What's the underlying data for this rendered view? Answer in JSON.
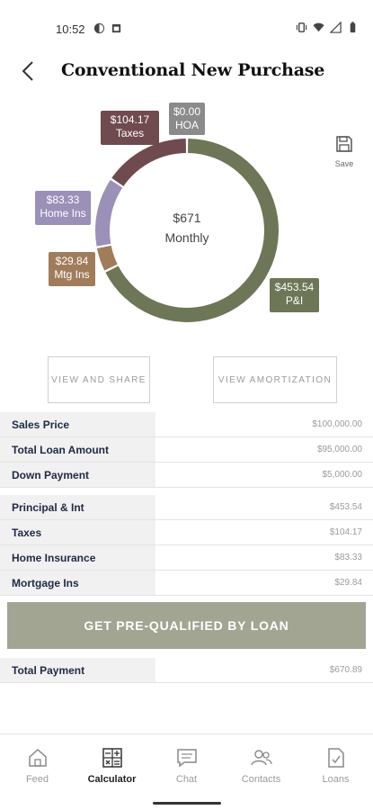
{
  "status_bar": {
    "time": "10:52"
  },
  "header": {
    "title": "Conventional New Purchase"
  },
  "chart_data": {
    "type": "pie",
    "center_amount": "$671",
    "center_label": "Monthly",
    "series": [
      {
        "name": "P&I",
        "value": 453.54,
        "label": "$453.54",
        "color": "#6d7656"
      },
      {
        "name": "Mtg Ins",
        "value": 29.84,
        "label": "$29.84",
        "color": "#a17c5b"
      },
      {
        "name": "Home Ins",
        "value": 83.33,
        "label": "$83.33",
        "color": "#9a90b8"
      },
      {
        "name": "Taxes",
        "value": 104.17,
        "label": "$104.17",
        "color": "#6f4a4e"
      },
      {
        "name": "HOA",
        "value": 0.0,
        "label": "$0.00",
        "color": "#8b8b8b"
      }
    ]
  },
  "save": {
    "label": "Save"
  },
  "buttons": {
    "share": "VIEW AND SHARE",
    "amortization": "VIEW AMORTIZATION",
    "cta": "GET PRE-QUALIFIED BY LOAN"
  },
  "loan_rows": [
    {
      "label": "Sales Price",
      "value": "$100,000.00"
    },
    {
      "label": "Total Loan Amount",
      "value": "$95,000.00"
    },
    {
      "label": "Down Payment",
      "value": "$5,000.00"
    }
  ],
  "payment_rows": [
    {
      "label": "Principal & Int",
      "value": "$453.54"
    },
    {
      "label": "Taxes",
      "value": "$104.17"
    },
    {
      "label": "Home Insurance",
      "value": "$83.33"
    },
    {
      "label": "Mortgage Ins",
      "value": "$29.84"
    }
  ],
  "total_row": {
    "label": "Total Payment",
    "value": "$670.89"
  },
  "nav": [
    {
      "label": "Feed",
      "icon": "home-icon"
    },
    {
      "label": "Calculator",
      "icon": "calculator-icon",
      "active": true
    },
    {
      "label": "Chat",
      "icon": "chat-icon"
    },
    {
      "label": "Contacts",
      "icon": "contacts-icon"
    },
    {
      "label": "Loans",
      "icon": "document-icon"
    }
  ]
}
